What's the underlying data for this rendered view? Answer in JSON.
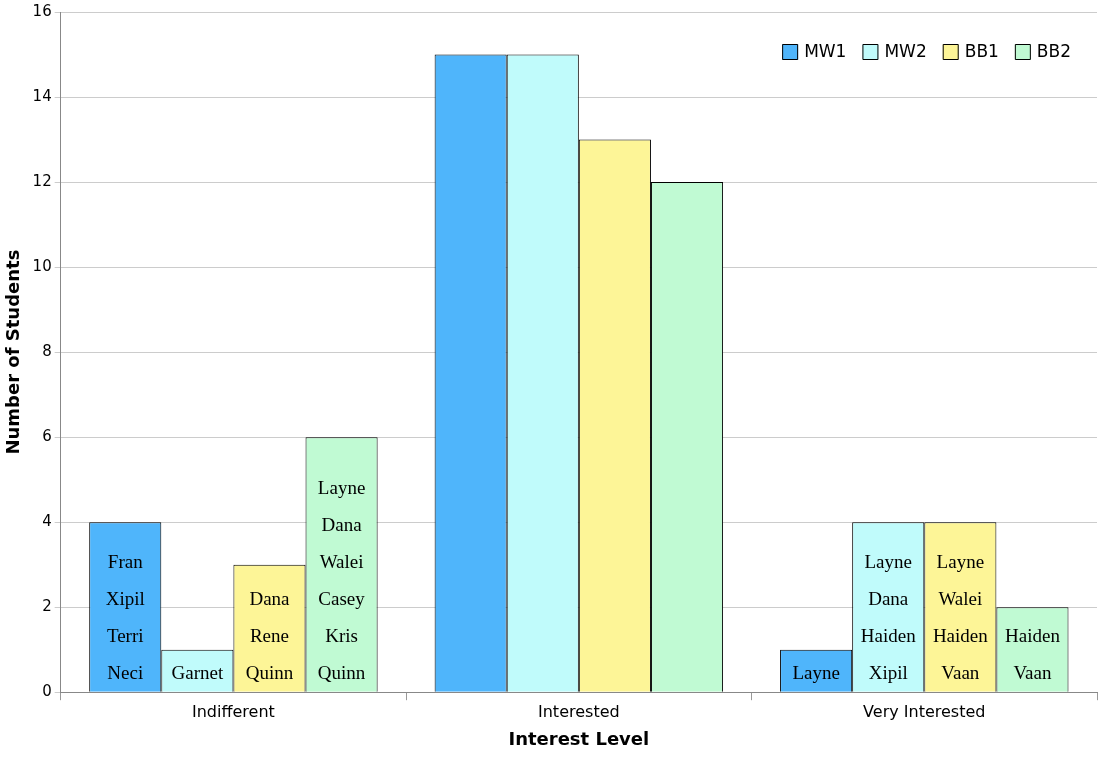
{
  "chart_data": {
    "type": "bar",
    "xlabel": "Interest Level",
    "ylabel": "Number of Students",
    "categories": [
      "Indifferent",
      "Interested",
      "Very Interested"
    ],
    "ylim": [
      0,
      16
    ],
    "yticks": [
      0,
      2,
      4,
      6,
      8,
      10,
      12,
      14,
      16
    ],
    "grid": "y",
    "legend": "top right",
    "series": [
      {
        "name": "MW1",
        "color": "#4fb5fb",
        "values": [
          4,
          15,
          1
        ],
        "value_labels": [
          "Fran\nXipil\nTerri\nNeci",
          null,
          "Layne"
        ]
      },
      {
        "name": "MW2",
        "color": "#c0fbfb",
        "values": [
          1,
          15,
          4
        ],
        "value_labels": [
          "Garnet",
          null,
          "Layne\nDana\nHaiden\nXipil"
        ]
      },
      {
        "name": "BB1",
        "color": "#fdf597",
        "values": [
          3,
          13,
          4
        ],
        "value_labels": [
          "Dana\nRene\nQuinn",
          null,
          "Layne\nWalei\nHaiden\nVaan"
        ]
      },
      {
        "name": "BB2",
        "color": "#c0fad3",
        "values": [
          6,
          12,
          2
        ],
        "value_labels": [
          "Layne\nDana\nWalei\nCasey\nKris\nQuinn",
          null,
          "Haiden\nVaan"
        ]
      }
    ]
  }
}
